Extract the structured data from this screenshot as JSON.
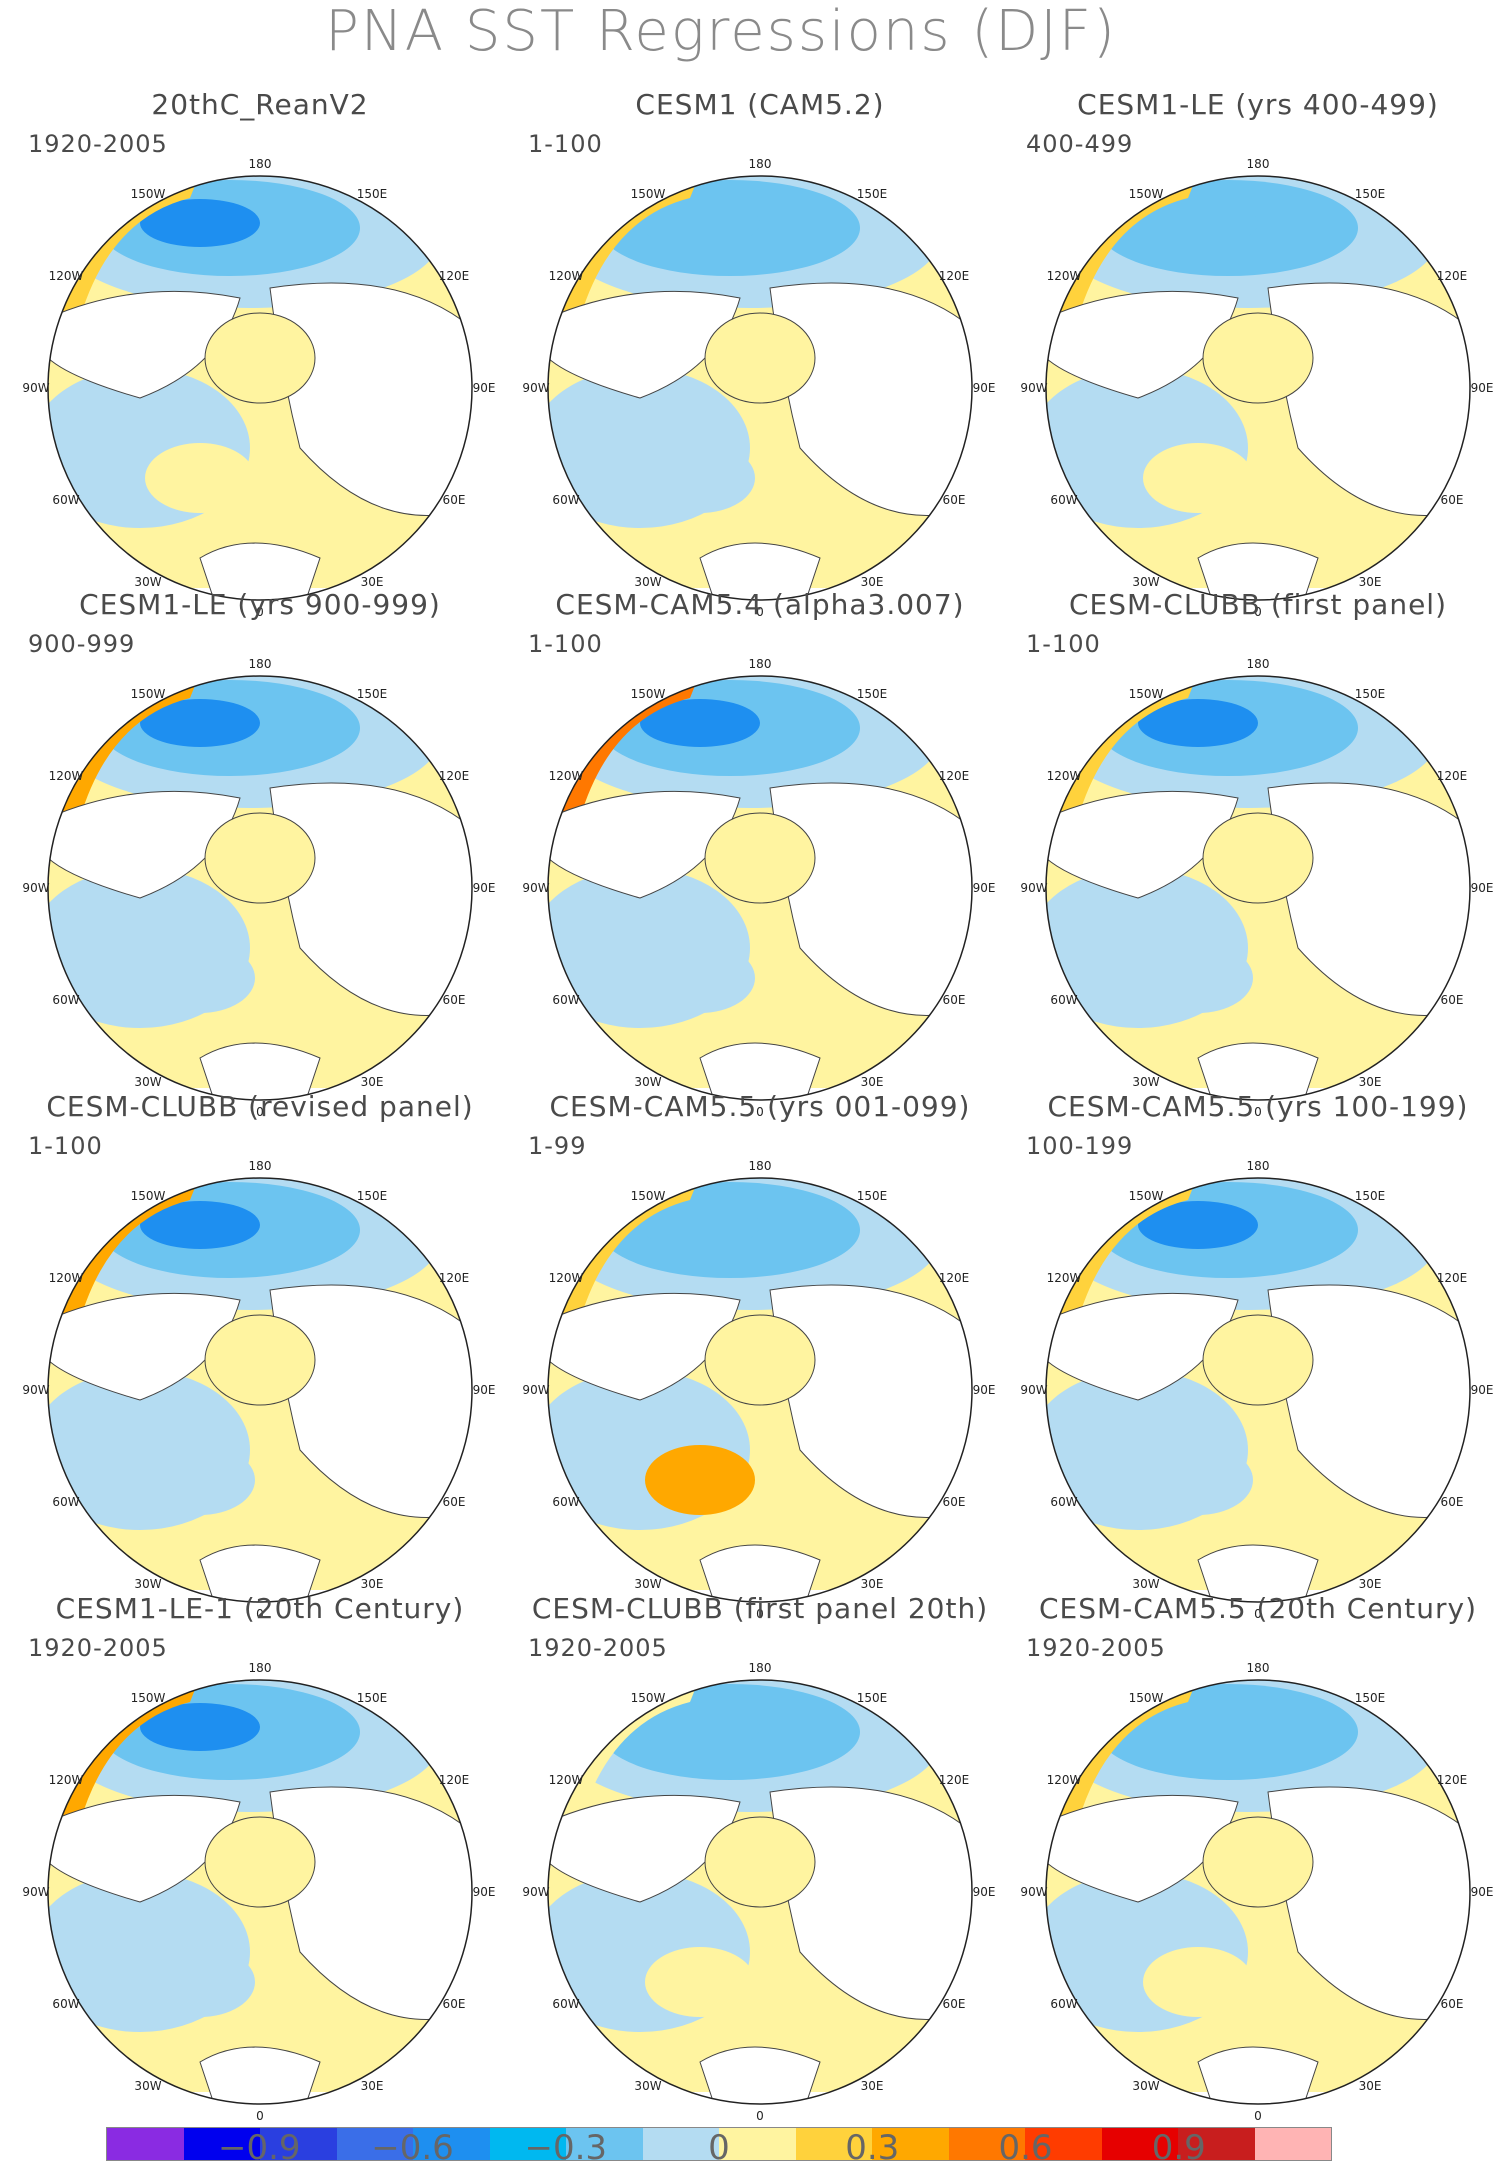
{
  "title": "PNA SST Regressions (DJF)",
  "longitude_labels": {
    "lon_180": "180",
    "lon_150W": "150W",
    "lon_150E": "150E",
    "lon_120W": "120W",
    "lon_120E": "120E",
    "lon_90W": "90W",
    "lon_90E": "90E",
    "lon_60W": "60W",
    "lon_60E": "60E",
    "lon_30W": "30W",
    "lon_30E": "30E",
    "lon_0": "0"
  },
  "panels": [
    {
      "title": "20thC_ReanV2",
      "period": "1920-2005"
    },
    {
      "title": "CESM1 (CAM5.2)",
      "period": "1-100"
    },
    {
      "title": "CESM1-LE (yrs 400-499)",
      "period": "400-499"
    },
    {
      "title": "CESM1-LE (yrs 900-999)",
      "period": "900-999"
    },
    {
      "title": "CESM-CAM5.4 (alpha3.007)",
      "period": "1-100"
    },
    {
      "title": "CESM-CLUBB (first panel)",
      "period": "1-100"
    },
    {
      "title": "CESM-CLUBB (revised panel)",
      "period": "1-100"
    },
    {
      "title": "CESM-CAM5.5 (yrs 001-099)",
      "period": "1-99"
    },
    {
      "title": "CESM-CAM5.5 (yrs 100-199)",
      "period": "100-199"
    },
    {
      "title": "CESM1-LE-1 (20th Century)",
      "period": "1920-2005"
    },
    {
      "title": "CESM-CLUBB (first panel 20th)",
      "period": "1920-2005"
    },
    {
      "title": "CESM-CAM5.5 (20th Century)",
      "period": "1920-2005"
    }
  ],
  "colorbar": {
    "colors": [
      "#8a2be2",
      "#0000ee",
      "#2a3fe0",
      "#3a6ee8",
      "#1e8ff0",
      "#00b8f0",
      "#6cc4f0",
      "#b4dcf2",
      "#fff4a0",
      "#ffd23c",
      "#ffa800",
      "#ff7800",
      "#ff3c00",
      "#e60000",
      "#c81e1e",
      "#ffb4b4"
    ],
    "ticks": [
      {
        "label": "−0.9",
        "value": -0.9
      },
      {
        "label": "−0.6",
        "value": -0.6
      },
      {
        "label": "−0.3",
        "value": -0.3
      },
      {
        "label": "0",
        "value": 0
      },
      {
        "label": "0.3",
        "value": 0.3
      },
      {
        "label": "0.6",
        "value": 0.6
      },
      {
        "label": "0.9",
        "value": 0.9
      }
    ],
    "min": -1.2,
    "max": 1.2
  },
  "colors": {
    "pos_light": "#fff4a0",
    "pos_mid": "#ffd23c",
    "pos_strong": "#ffa800",
    "pos_vstrong": "#ff7800",
    "neg_light": "#b4dcf2",
    "neg_mid": "#6cc4f0",
    "neg_strong": "#1e8ff0",
    "neg_vstrong": "#2a3fe0",
    "land": "#ffffff",
    "coast": "#444444"
  }
}
